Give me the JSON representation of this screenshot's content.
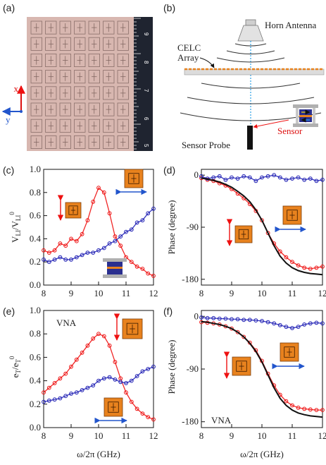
{
  "panel_labels": {
    "a": "(a)",
    "b": "(b)",
    "c": "(c)",
    "d": "(d)",
    "e": "(e)",
    "f": "(f)"
  },
  "photo": {
    "axis_x": "x",
    "axis_y": "y",
    "ruler_numbers": [
      "9",
      "8",
      "7",
      "6",
      "5"
    ],
    "colors": {
      "substrate": "#d8b7b0",
      "ruler": "#1f2430",
      "axis_red": "#d11",
      "axis_blue": "#2255cc"
    }
  },
  "schematic": {
    "horn_label": "Horn Antenna",
    "celc_label_1": "CELC",
    "celc_label_2": "Array",
    "sensor_label": "Sensor",
    "probe_label": "Sensor Probe"
  },
  "colors": {
    "red": "#ee1111",
    "blue": "#1f1fb4",
    "fit": "#111111",
    "orange": "#e8821e"
  },
  "chart_data": [
    {
      "panel": "c",
      "type": "line",
      "xlabel": "",
      "ylabel": "V_LI/V_LI^0",
      "xlim": [
        8,
        12
      ],
      "ylim": [
        0,
        1.0
      ],
      "xticks": [
        "8",
        "9",
        "10",
        "11",
        "12"
      ],
      "yticks": [
        "0.0",
        "0.2",
        "0.4",
        "0.6",
        "0.8",
        "1.0"
      ],
      "x": [
        8.0,
        8.2,
        8.4,
        8.6,
        8.8,
        9.0,
        9.2,
        9.4,
        9.6,
        9.8,
        10.0,
        10.2,
        10.4,
        10.6,
        10.8,
        11.0,
        11.2,
        11.4,
        11.6,
        11.8,
        12.0
      ],
      "series": [
        {
          "color": "red",
          "values": [
            0.3,
            0.28,
            0.3,
            0.36,
            0.34,
            0.4,
            0.38,
            0.44,
            0.56,
            0.72,
            0.84,
            0.8,
            0.62,
            0.42,
            0.34,
            0.24,
            0.2,
            0.16,
            0.14,
            0.1,
            0.08
          ]
        },
        {
          "color": "blue",
          "values": [
            0.22,
            0.2,
            0.22,
            0.24,
            0.22,
            0.22,
            0.24,
            0.26,
            0.28,
            0.28,
            0.3,
            0.32,
            0.36,
            0.38,
            0.42,
            0.46,
            0.48,
            0.54,
            0.56,
            0.62,
            0.66
          ]
        }
      ]
    },
    {
      "panel": "d",
      "type": "line",
      "xlabel": "",
      "ylabel": "Phase (degree)",
      "xlim": [
        8,
        12
      ],
      "ylim": [
        -190,
        10
      ],
      "xticks": [
        "8",
        "9",
        "10",
        "11",
        "12"
      ],
      "yticks": [
        "0",
        "-90",
        "-180"
      ],
      "x": [
        8.0,
        8.2,
        8.4,
        8.6,
        8.8,
        9.0,
        9.2,
        9.4,
        9.6,
        9.8,
        10.0,
        10.2,
        10.4,
        10.6,
        10.8,
        11.0,
        11.2,
        11.4,
        11.6,
        11.8,
        12.0
      ],
      "series": [
        {
          "color": "red",
          "values": [
            -5,
            -8,
            -10,
            -14,
            -18,
            -24,
            -32,
            -40,
            -50,
            -62,
            -78,
            -100,
            -118,
            -132,
            -142,
            -150,
            -156,
            -160,
            -162,
            -160,
            -158
          ]
        },
        {
          "color": "blue",
          "values": [
            -2,
            -6,
            -4,
            -2,
            -8,
            -4,
            -6,
            -2,
            -4,
            -10,
            -4,
            -2,
            0,
            -4,
            -8,
            -6,
            -4,
            -8,
            -6,
            -10,
            -8
          ]
        },
        {
          "color": "fit",
          "values": [
            -5,
            -7,
            -9,
            -12,
            -16,
            -21,
            -28,
            -36,
            -46,
            -60,
            -78,
            -100,
            -122,
            -140,
            -152,
            -160,
            -165,
            -168,
            -170,
            -171,
            -172
          ]
        }
      ]
    },
    {
      "panel": "e",
      "type": "line",
      "xlabel": "ω/2π (GHz)",
      "ylabel": "e_T/e_T^0",
      "xlim": [
        8,
        12
      ],
      "ylim": [
        0,
        1.0
      ],
      "xticks": [
        "8",
        "9",
        "10",
        "11",
        "12"
      ],
      "yticks": [
        "0.0",
        "0.2",
        "0.4",
        "0.6",
        "0.8",
        "1.0"
      ],
      "annotation": "VNA",
      "x": [
        8.0,
        8.2,
        8.4,
        8.6,
        8.8,
        9.0,
        9.2,
        9.4,
        9.6,
        9.8,
        10.0,
        10.2,
        10.4,
        10.6,
        10.8,
        11.0,
        11.2,
        11.4,
        11.6,
        11.8,
        12.0
      ],
      "series": [
        {
          "color": "red",
          "values": [
            0.3,
            0.34,
            0.38,
            0.42,
            0.46,
            0.52,
            0.58,
            0.64,
            0.7,
            0.76,
            0.8,
            0.78,
            0.7,
            0.56,
            0.42,
            0.3,
            0.22,
            0.16,
            0.12,
            0.09,
            0.07
          ]
        },
        {
          "color": "blue",
          "values": [
            0.22,
            0.23,
            0.24,
            0.25,
            0.27,
            0.29,
            0.3,
            0.32,
            0.34,
            0.36,
            0.4,
            0.42,
            0.43,
            0.41,
            0.39,
            0.38,
            0.4,
            0.44,
            0.48,
            0.5,
            0.52
          ]
        }
      ]
    },
    {
      "panel": "f",
      "type": "line",
      "xlabel": "ω/2π (GHz)",
      "ylabel": "Phase (degree)",
      "xlim": [
        8,
        12
      ],
      "ylim": [
        -190,
        10
      ],
      "xticks": [
        "8",
        "9",
        "10",
        "11",
        "12"
      ],
      "yticks": [
        "0",
        "-90",
        "-180"
      ],
      "annotation": "VNA",
      "x": [
        8.0,
        8.2,
        8.4,
        8.6,
        8.8,
        9.0,
        9.2,
        9.4,
        9.6,
        9.8,
        10.0,
        10.2,
        10.4,
        10.6,
        10.8,
        11.0,
        11.2,
        11.4,
        11.6,
        11.8,
        12.0
      ],
      "series": [
        {
          "color": "red",
          "values": [
            -10,
            -11,
            -12,
            -14,
            -17,
            -21,
            -27,
            -35,
            -45,
            -58,
            -76,
            -98,
            -118,
            -134,
            -145,
            -152,
            -156,
            -158,
            -159,
            -160,
            -160
          ]
        },
        {
          "color": "blue",
          "values": [
            -2,
            -3,
            -3,
            -4,
            -4,
            -5,
            -5,
            -6,
            -6,
            -7,
            -8,
            -10,
            -12,
            -15,
            -18,
            -20,
            -18,
            -14,
            -12,
            -11,
            -12
          ]
        },
        {
          "color": "fit",
          "values": [
            -9,
            -10,
            -12,
            -14,
            -17,
            -21,
            -27,
            -35,
            -46,
            -60,
            -78,
            -100,
            -122,
            -140,
            -152,
            -160,
            -165,
            -168,
            -170,
            -171,
            -172
          ]
        }
      ]
    }
  ]
}
